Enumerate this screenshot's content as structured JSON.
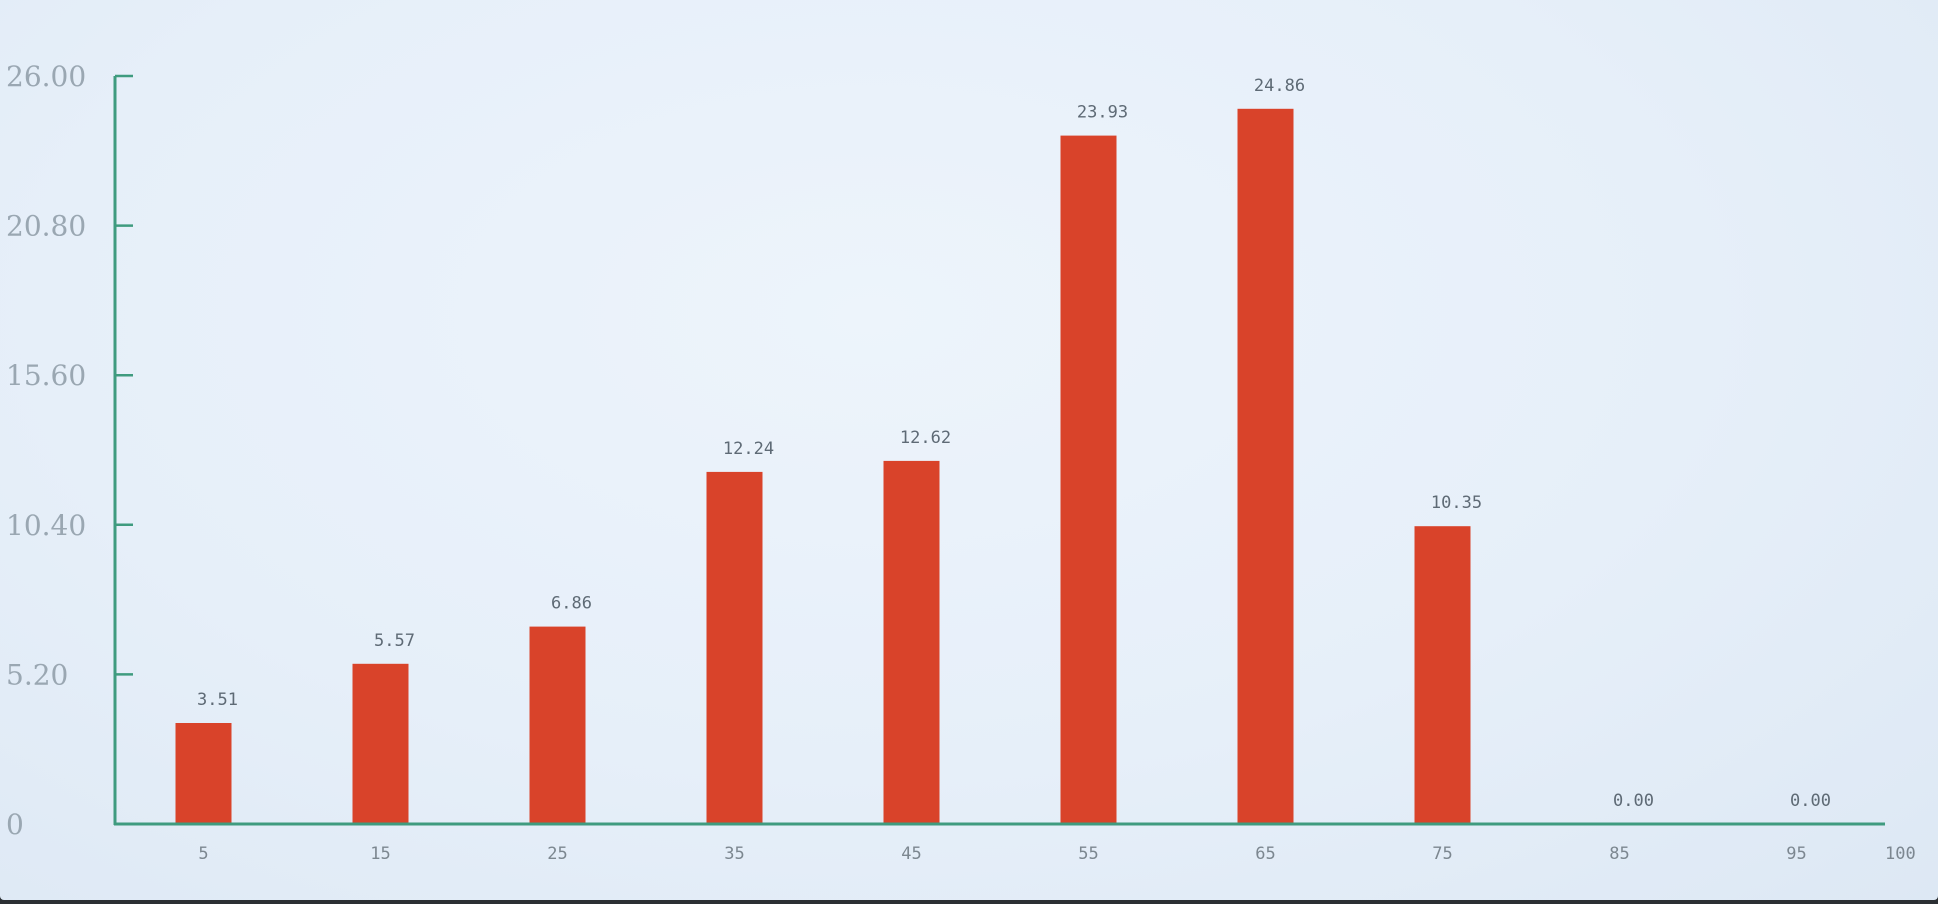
{
  "chart_data": {
    "type": "bar",
    "categories": [
      "5",
      "15",
      "25",
      "35",
      "45",
      "55",
      "65",
      "75",
      "85",
      "95"
    ],
    "values": [
      3.51,
      5.57,
      6.86,
      12.24,
      12.62,
      23.93,
      24.86,
      10.35,
      0.0,
      0.0
    ],
    "value_labels": [
      "3.51",
      "5.57",
      "6.86",
      "12.24",
      "12.62",
      "23.93",
      "24.86",
      "10.35",
      "0.00",
      "0.00"
    ],
    "title": "",
    "xlabel": "",
    "ylabel": "",
    "ylim": [
      0,
      26.0
    ],
    "xlim": [
      0,
      100
    ],
    "y_ticks": [
      "0",
      "5.20",
      "10.40",
      "15.60",
      "20.80",
      "26.00"
    ],
    "x_end_label": "100",
    "grid": false,
    "colors": {
      "bar": "#d9432a",
      "axis": "#3f9b7f",
      "background": "#e9f1fa"
    }
  }
}
